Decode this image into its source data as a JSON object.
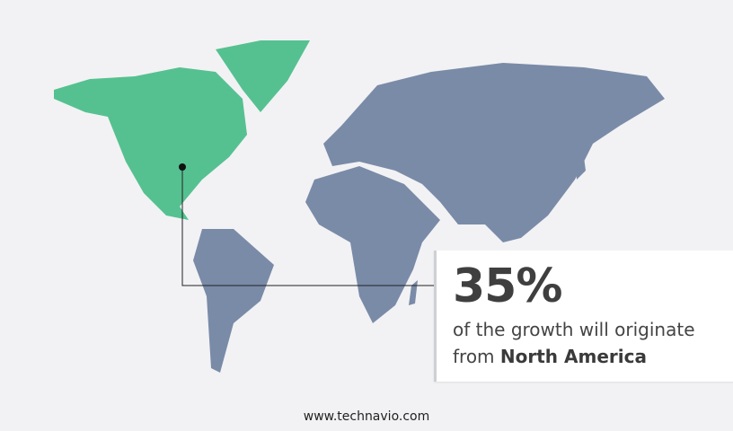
{
  "callout": {
    "percentage": "35%",
    "line1": "of the growth will originate",
    "line2_prefix": "from ",
    "region": "North America"
  },
  "footer": {
    "website": "www.technavio.com"
  },
  "colors": {
    "highlight_region": "#55c190",
    "other_regions": "#7a8ba8",
    "background": "#f2f2f4"
  }
}
